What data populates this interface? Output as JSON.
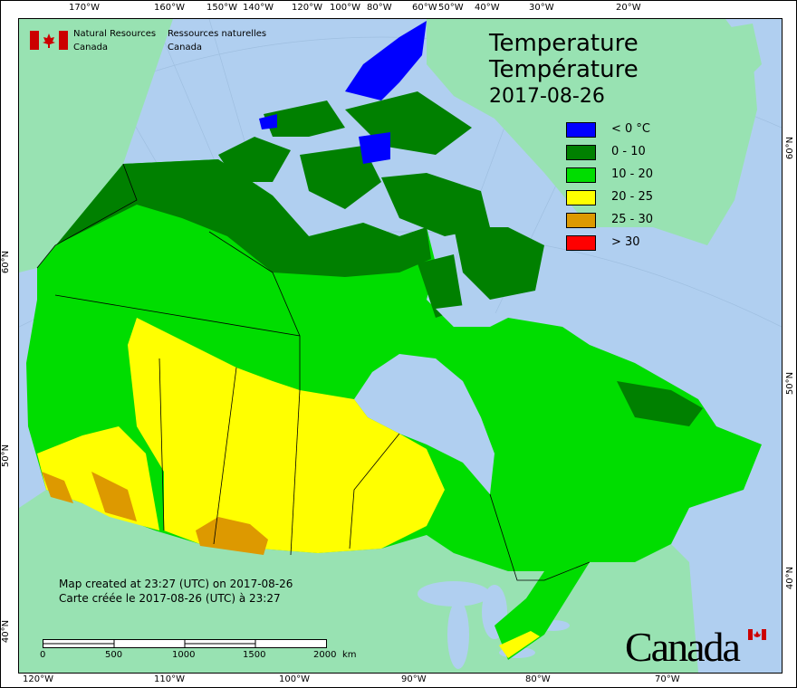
{
  "header": {
    "org_en": [
      "Natural Resources",
      "Canada"
    ],
    "org_fr": [
      "Ressources naturelles",
      "Canada"
    ]
  },
  "title": {
    "en": "Temperature",
    "fr": "Température",
    "date": "2017-08-26"
  },
  "legend": [
    {
      "label": "< 0 °C",
      "color": "#0000ff"
    },
    {
      "label": "0 - 10",
      "color": "#008000"
    },
    {
      "label": "10 - 20",
      "color": "#00dd00"
    },
    {
      "label": "20 - 25",
      "color": "#ffff00"
    },
    {
      "label": "25 - 30",
      "color": "#dd9900"
    },
    {
      "label": "> 30",
      "color": "#ff0000"
    }
  ],
  "credits": {
    "en": "Map created at 23:27 (UTC) on 2017-08-26",
    "fr": "Carte créée le 2017-08-26 (UTC) à 23:27"
  },
  "scale_bar": {
    "labels": [
      "0",
      "500",
      "1000",
      "1500",
      "2000"
    ],
    "unit": "km"
  },
  "axes": {
    "top": [
      "170°W",
      "160°W",
      "150°W",
      "140°W",
      "120°W",
      "100°W",
      "80°W",
      "60°W",
      "50°W",
      "40°W",
      "30°W",
      "20°W"
    ],
    "bottom": [
      "120°W",
      "110°W",
      "100°W",
      "90°W",
      "80°W",
      "70°W"
    ],
    "left": [
      "60°N",
      "50°N",
      "40°N"
    ],
    "right": [
      "60°N",
      "50°N",
      "40°N"
    ]
  },
  "wordmark": "Canada",
  "colors": {
    "ocean": "#b0cff0",
    "foreign_land": "#98e2b2",
    "border": "#000000"
  }
}
